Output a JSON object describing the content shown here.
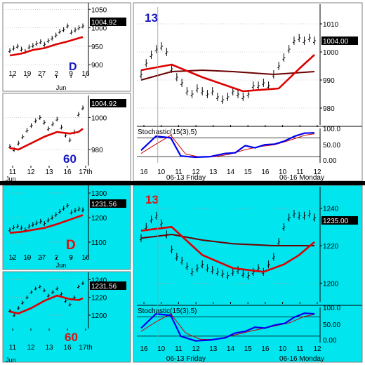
{
  "colors": {
    "white_bg": "#ffffff",
    "cyan_bg": "#00e5ee",
    "price": "#000000",
    "ma_fast": "#dd0000",
    "ma_slow": "#6b0000",
    "stoch_k": "#0000ee",
    "stoch_d": "#cc0000",
    "divider": "#000000",
    "label_blue": "#1515c0",
    "label_red": "#dd1111"
  },
  "chart_data": [
    {
      "id": "top-daily",
      "type": "line",
      "timeframe_label": "D",
      "label_color": "label_blue",
      "background": "white_bg",
      "x_ticks": [
        "12",
        "19",
        "27",
        "2",
        "9",
        "16"
      ],
      "x_sublabel": "Jun",
      "y_ticks": [
        1050,
        1000,
        950,
        900
      ],
      "ylim": [
        870,
        1060
      ],
      "last_price": "1004.92",
      "bars": [
        938,
        945,
        950,
        942,
        936,
        948,
        952,
        958,
        962,
        955,
        965,
        972,
        980,
        990,
        995,
        1005,
        988,
        994,
        1000,
        1004.92
      ],
      "ma": [
        [
          0,
          925
        ],
        [
          3,
          930
        ],
        [
          6,
          940
        ],
        [
          9,
          945
        ],
        [
          12,
          955
        ],
        [
          15,
          963
        ],
        [
          18,
          972
        ],
        [
          19,
          975
        ]
      ],
      "ma2": []
    },
    {
      "id": "top-60min",
      "type": "line",
      "timeframe_label": "60",
      "label_color": "label_blue",
      "background": "white_bg",
      "x_ticks": [
        "11",
        "12",
        "13",
        "16",
        "17th"
      ],
      "x_sublabel": "Jun",
      "y_ticks": [
        1000,
        980
      ],
      "ylim": [
        970,
        1012
      ],
      "last_price": "1004.92",
      "bars": [
        982,
        980,
        984,
        988,
        992,
        995,
        998,
        1000,
        997,
        993,
        996,
        999,
        994,
        989,
        986,
        991,
        1002,
        1006
      ],
      "ma": [
        [
          0,
          981
        ],
        [
          2,
          980
        ],
        [
          5,
          984
        ],
        [
          8,
          988
        ],
        [
          11,
          991
        ],
        [
          14,
          990
        ],
        [
          16,
          991
        ],
        [
          17,
          993
        ]
      ],
      "ma2": []
    },
    {
      "id": "top-13min",
      "type": "line",
      "timeframe_label": "13",
      "label_color": "label_blue",
      "background": "white_bg",
      "x_ticks": [
        "16",
        "10",
        "11",
        "12",
        "13",
        "14",
        "15",
        "16",
        "10",
        "11",
        "12"
      ],
      "session_labels": [
        "06-13 Friday",
        "06-16 Monday"
      ],
      "y_ticks": [
        1010,
        1000,
        990,
        980
      ],
      "ylim": [
        974,
        1016
      ],
      "last_price": "1004.00",
      "bars": [
        992,
        996,
        999,
        1001,
        1002,
        1000,
        994,
        991,
        989,
        986,
        985,
        987,
        986,
        985,
        986,
        984,
        983,
        984,
        986,
        985,
        984,
        985,
        988,
        988,
        989,
        988,
        992,
        995,
        998,
        1001,
        1004,
        1005,
        1004,
        1005,
        1004
      ],
      "ma": [
        [
          0,
          993.5
        ],
        [
          6,
          995.5
        ],
        [
          12,
          991
        ],
        [
          20,
          986
        ],
        [
          27,
          987
        ],
        [
          31,
          994
        ],
        [
          34,
          999
        ]
      ],
      "ma2": [
        [
          0,
          990
        ],
        [
          6,
          993
        ],
        [
          12,
          993.5
        ],
        [
          18,
          993
        ],
        [
          26,
          992
        ],
        [
          34,
          993
        ]
      ],
      "stoch": {
        "title": "Stochastic(15(3),5)",
        "y_ticks": [
          100,
          50.0,
          0.0
        ],
        "y_tick_labels": [
          "100.0",
          "50.00",
          "0.00"
        ],
        "ylim": [
          0,
          110
        ],
        "levels": [
          80,
          20
        ],
        "k": [
          [
            0,
            40
          ],
          [
            3,
            85
          ],
          [
            6,
            80
          ],
          [
            8,
            22
          ],
          [
            11,
            18
          ],
          [
            14,
            20
          ],
          [
            17,
            30
          ],
          [
            19,
            32
          ],
          [
            21,
            55
          ],
          [
            23,
            48
          ],
          [
            25,
            58
          ],
          [
            27,
            60
          ],
          [
            29,
            70
          ],
          [
            31,
            85
          ],
          [
            33,
            95
          ],
          [
            35,
            96
          ]
        ],
        "d": [
          [
            0,
            30
          ],
          [
            3,
            60
          ],
          [
            6,
            88
          ],
          [
            9,
            28
          ],
          [
            12,
            18
          ],
          [
            15,
            20
          ],
          [
            18,
            28
          ],
          [
            21,
            42
          ],
          [
            24,
            52
          ],
          [
            27,
            58
          ],
          [
            30,
            72
          ],
          [
            33,
            88
          ],
          [
            35,
            93
          ]
        ]
      }
    },
    {
      "id": "bottom-daily",
      "type": "line",
      "timeframe_label": "D",
      "label_color": "label_red",
      "background": "cyan_bg",
      "x_ticks": [
        "12",
        "19",
        "27",
        "2",
        "9",
        "16"
      ],
      "x_sublabel": "Jun",
      "y_ticks": [
        1300,
        1200,
        1100
      ],
      "ylim": [
        1040,
        1320
      ],
      "last_price": "1231.56",
      "bars": [
        1150,
        1160,
        1165,
        1158,
        1150,
        1165,
        1172,
        1178,
        1185,
        1176,
        1190,
        1200,
        1212,
        1225,
        1238,
        1250,
        1222,
        1230,
        1235,
        1231.56
      ],
      "ma": [
        [
          0,
          1138
        ],
        [
          3,
          1142
        ],
        [
          6,
          1150
        ],
        [
          9,
          1158
        ],
        [
          12,
          1172
        ],
        [
          15,
          1188
        ],
        [
          18,
          1205
        ],
        [
          19,
          1210
        ]
      ],
      "ma2": []
    },
    {
      "id": "bottom-60min",
      "type": "line",
      "timeframe_label": "60",
      "label_color": "label_red",
      "background": "cyan_bg",
      "x_ticks": [
        "11",
        "12",
        "13",
        "16",
        "17th"
      ],
      "x_sublabel": "Jun",
      "y_ticks": [
        1240,
        1220,
        1200
      ],
      "ylim": [
        1185,
        1245
      ],
      "last_price": "1231.56",
      "bars": [
        1205,
        1200,
        1208,
        1214,
        1220,
        1226,
        1230,
        1232,
        1228,
        1222,
        1226,
        1230,
        1224,
        1216,
        1212,
        1220,
        1232,
        1236
      ],
      "ma": [
        [
          0,
          1204
        ],
        [
          2,
          1202
        ],
        [
          5,
          1208
        ],
        [
          8,
          1216
        ],
        [
          11,
          1222
        ],
        [
          14,
          1218
        ],
        [
          16,
          1217
        ],
        [
          17,
          1219
        ]
      ],
      "ma2": []
    },
    {
      "id": "bottom-13min",
      "type": "line",
      "timeframe_label": "13",
      "label_color": "label_red",
      "background": "cyan_bg",
      "x_ticks": [
        "16",
        "10",
        "11",
        "12",
        "13",
        "14",
        "15",
        "16",
        "10",
        "11",
        "12"
      ],
      "session_labels": [
        "06-13 Friday",
        "06-16 Monday"
      ],
      "y_ticks": [
        1240,
        1220,
        1200
      ],
      "ylim": [
        1190,
        1250
      ],
      "last_price": "1235.00",
      "bars": [
        1224,
        1230,
        1234,
        1236,
        1232,
        1226,
        1218,
        1214,
        1212,
        1209,
        1206,
        1208,
        1210,
        1208,
        1207,
        1206,
        1205,
        1204,
        1206,
        1207,
        1205,
        1204,
        1206,
        1208,
        1206,
        1210,
        1214,
        1222,
        1230,
        1235,
        1237,
        1236,
        1236,
        1237,
        1235
      ],
      "ma": [
        [
          0,
          1228
        ],
        [
          6,
          1230
        ],
        [
          12,
          1215
        ],
        [
          18,
          1208
        ],
        [
          24,
          1206
        ],
        [
          28,
          1210
        ],
        [
          31,
          1215
        ],
        [
          34,
          1222
        ]
      ],
      "ma2": [
        [
          0,
          1224
        ],
        [
          6,
          1226
        ],
        [
          12,
          1223
        ],
        [
          18,
          1221
        ],
        [
          26,
          1220
        ],
        [
          34,
          1220
        ]
      ],
      "stoch": {
        "title": "Stochastic(15(3),5)",
        "y_ticks": [
          100,
          50.0,
          0.0
        ],
        "y_tick_labels": [
          "100.0",
          "50.00",
          "0.00"
        ],
        "ylim": [
          0,
          110
        ],
        "levels": [
          80,
          20
        ],
        "k": [
          [
            0,
            45
          ],
          [
            3,
            90
          ],
          [
            6,
            85
          ],
          [
            8,
            20
          ],
          [
            11,
            5
          ],
          [
            14,
            8
          ],
          [
            17,
            15
          ],
          [
            19,
            30
          ],
          [
            21,
            35
          ],
          [
            23,
            48
          ],
          [
            25,
            45
          ],
          [
            27,
            55
          ],
          [
            29,
            60
          ],
          [
            31,
            80
          ],
          [
            33,
            92
          ],
          [
            35,
            90
          ]
        ],
        "d": [
          [
            0,
            35
          ],
          [
            3,
            65
          ],
          [
            6,
            90
          ],
          [
            9,
            30
          ],
          [
            12,
            10
          ],
          [
            15,
            10
          ],
          [
            18,
            20
          ],
          [
            21,
            32
          ],
          [
            24,
            42
          ],
          [
            27,
            52
          ],
          [
            30,
            62
          ],
          [
            33,
            82
          ],
          [
            35,
            88
          ]
        ]
      }
    }
  ]
}
